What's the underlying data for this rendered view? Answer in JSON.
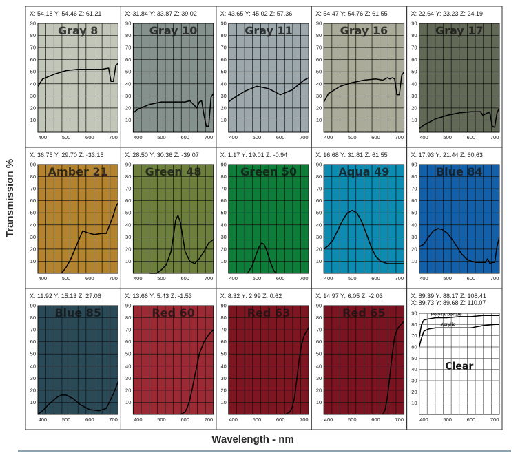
{
  "figure": {
    "ylabel": "Transmission %",
    "xlabel": "Wavelength - nm"
  },
  "chart_data": {
    "type": "line",
    "xlim": [
      380,
      720
    ],
    "ylim": [
      0,
      90
    ],
    "x_ticks": [
      400,
      500,
      600,
      700
    ],
    "y_ticks": [
      10,
      20,
      30,
      40,
      50,
      60,
      70,
      80,
      90
    ],
    "grid": true,
    "panels": [
      {
        "name": "Gray 8",
        "header": "X: 54.18   Y: 54.46   Z: 61.21",
        "bg": "#c2c6b9",
        "series": [
          {
            "x": [
              380,
              400,
              450,
              500,
              550,
              600,
              650,
              680,
              690,
              700,
              710,
              720
            ],
            "y": [
              38,
              44,
              48,
              51,
              52,
              52,
              52,
              53,
              42,
              42,
              55,
              57
            ]
          }
        ]
      },
      {
        "name": "Gray 10",
        "header": "X: 31.84   Y: 33.87   Z: 39.02",
        "bg": "#85918c",
        "series": [
          {
            "x": [
              380,
              400,
              450,
              500,
              550,
              600,
              620,
              640,
              650,
              660,
              670,
              680,
              690,
              700,
              710,
              720
            ],
            "y": [
              16,
              19,
              23,
              25,
              25,
              25,
              26,
              22,
              20,
              25,
              26,
              14,
              5,
              5,
              29,
              32
            ]
          }
        ]
      },
      {
        "name": "Gray 11",
        "header": "X: 43.65   Y: 45.02   Z: 57.36",
        "bg": "#9ca8ac",
        "series": [
          {
            "x": [
              380,
              400,
              450,
              500,
              550,
              600,
              650,
              700,
              720
            ],
            "y": [
              25,
              28,
              34,
              38,
              36,
              31,
              35,
              43,
              45
            ]
          }
        ]
      },
      {
        "name": "Gray 16",
        "header": "X: 54.47   Y: 54.76   Z: 61.55",
        "bg": "#aaab98",
        "series": [
          {
            "x": [
              380,
              400,
              450,
              500,
              550,
              600,
              630,
              650,
              660,
              670,
              680,
              690,
              700,
              710,
              720
            ],
            "y": [
              25,
              32,
              38,
              41,
              43,
              44,
              43,
              45,
              44,
              45,
              44,
              31,
              31,
              47,
              50
            ]
          }
        ]
      },
      {
        "name": "Gray 17",
        "header": "X: 22.64   Y: 23.23   Z: 24.19",
        "bg": "#636957",
        "series": [
          {
            "x": [
              380,
              400,
              450,
              500,
              550,
              600,
              640,
              650,
              660,
              670,
              680,
              690,
              700,
              710,
              720
            ],
            "y": [
              3,
              6,
              11,
              14,
              16,
              17,
              17,
              14,
              15,
              16,
              16,
              5,
              4,
              16,
              20
            ]
          }
        ]
      },
      {
        "name": "Amber 21",
        "header": "X: 36.75   Y: 29.70   Z: -33.15",
        "bg": "#b3832f",
        "series": [
          {
            "x": [
              480,
              500,
              520,
              550,
              570,
              600,
              620,
              650,
              670,
              700,
              710,
              720
            ],
            "y": [
              0,
              5,
              12,
              26,
              35,
              33,
              32,
              33,
              33,
              48,
              55,
              58
            ]
          }
        ]
      },
      {
        "name": "Green 48",
        "header": "X: 28.50   Y: 30.36   Z: -39.07",
        "bg": "#6c7f3c",
        "series": [
          {
            "x": [
              450,
              480,
              500,
              520,
              540,
              550,
              560,
              570,
              580,
              590,
              600,
              620,
              640,
              660,
              680,
              700,
              720
            ],
            "y": [
              0,
              0,
              3,
              7,
              18,
              30,
              44,
              48,
              42,
              30,
              18,
              10,
              8,
              12,
              18,
              25,
              28
            ]
          }
        ]
      },
      {
        "name": "Green 50",
        "header": "X: 1.17   Y: 19.01   Z: -0.94",
        "bg": "#0e7d3a",
        "series": [
          {
            "x": [
              460,
              480,
              500,
              510,
              520,
              530,
              540,
              560,
              570,
              580
            ],
            "y": [
              0,
              6,
              17,
              22,
              25,
              24,
              20,
              8,
              3,
              0
            ]
          }
        ]
      },
      {
        "name": "Aqua 49",
        "header": "X: 16.68   Y: 31.81   Z: 61.55",
        "bg": "#0e8bb0",
        "series": [
          {
            "x": [
              380,
              400,
              420,
              440,
              460,
              480,
              500,
              520,
              540,
              560,
              580,
              600,
              620,
              650,
              700,
              720
            ],
            "y": [
              20,
              23,
              28,
              36,
              44,
              50,
              52,
              50,
              43,
              33,
              22,
              14,
              10,
              8,
              8,
              8
            ]
          }
        ]
      },
      {
        "name": "Blue 84",
        "header": "X: 17.93   Y: 21.44   Z: 60.63",
        "bg": "#1360a8",
        "series": [
          {
            "x": [
              380,
              400,
              420,
              440,
              460,
              480,
              500,
              520,
              540,
              560,
              580,
              600,
              620,
              640,
              650,
              660,
              670,
              680,
              690,
              700,
              710,
              720
            ],
            "y": [
              22,
              24,
              30,
              35,
              37,
              36,
              33,
              28,
              22,
              16,
              12,
              10,
              9,
              9,
              9,
              9,
              12,
              8,
              9,
              9,
              22,
              30
            ]
          }
        ]
      },
      {
        "name": "Blue 85",
        "header": "X: 11.92   Y: 15.13   Z: 27.06",
        "bg": "#2b4a58",
        "series": [
          {
            "x": [
              380,
              400,
              430,
              460,
              480,
              500,
              530,
              560,
              600,
              640,
              670,
              700,
              720
            ],
            "y": [
              0,
              3,
              9,
              14,
              16,
              16,
              13,
              8,
              4,
              3,
              5,
              17,
              27
            ]
          }
        ]
      },
      {
        "name": "Red 60",
        "header": "X: 13.66   Y: 5.43   Z: -1.53",
        "bg": "#9b2a34",
        "series": [
          {
            "x": [
              580,
              600,
              610,
              620,
              630,
              640,
              650,
              660,
              680,
              700,
              720
            ],
            "y": [
              0,
              2,
              6,
              12,
              21,
              31,
              40,
              50,
              60,
              66,
              70
            ]
          }
        ]
      },
      {
        "name": "Red 63",
        "header": "X: 8.32   Y: 2.99   Z: 0.62",
        "bg": "#7e1622",
        "series": [
          {
            "x": [
              620,
              640,
              650,
              660,
              670,
              680,
              690,
              700,
              720
            ],
            "y": [
              0,
              2,
              6,
              14,
              30,
              46,
              58,
              65,
              72
            ]
          }
        ]
      },
      {
        "name": "Red 65",
        "header": "X: 14.97   Y: 6.05   Z: -2.03",
        "bg": "#7a1420",
        "series": [
          {
            "x": [
              630,
              640,
              650,
              660,
              670,
              680,
              690,
              700,
              720
            ],
            "y": [
              0,
              4,
              15,
              32,
              50,
              64,
              70,
              73,
              77
            ]
          }
        ]
      },
      {
        "name": "Clear",
        "header": "X: 89.39   Y: 88.17   Z: 108.41",
        "header2": "X: 89.73   Y: 89.68   Z: 110.07",
        "bg": "#ffffff",
        "series": [
          {
            "name": "Polycarbonate",
            "x": [
              380,
              390,
              400,
              420,
              450,
              500,
              550,
              600,
              650,
              700,
              720
            ],
            "y": [
              68,
              80,
              84,
              85,
              86,
              86,
              87,
              87,
              88,
              88,
              88
            ]
          },
          {
            "name": "Acrylic",
            "x": [
              380,
              390,
              400,
              420,
              450,
              500,
              550,
              600,
              650,
              700,
              720
            ],
            "y": [
              60,
              68,
              74,
              76,
              77,
              77,
              77,
              77,
              79,
              80,
              80
            ]
          }
        ]
      }
    ]
  }
}
